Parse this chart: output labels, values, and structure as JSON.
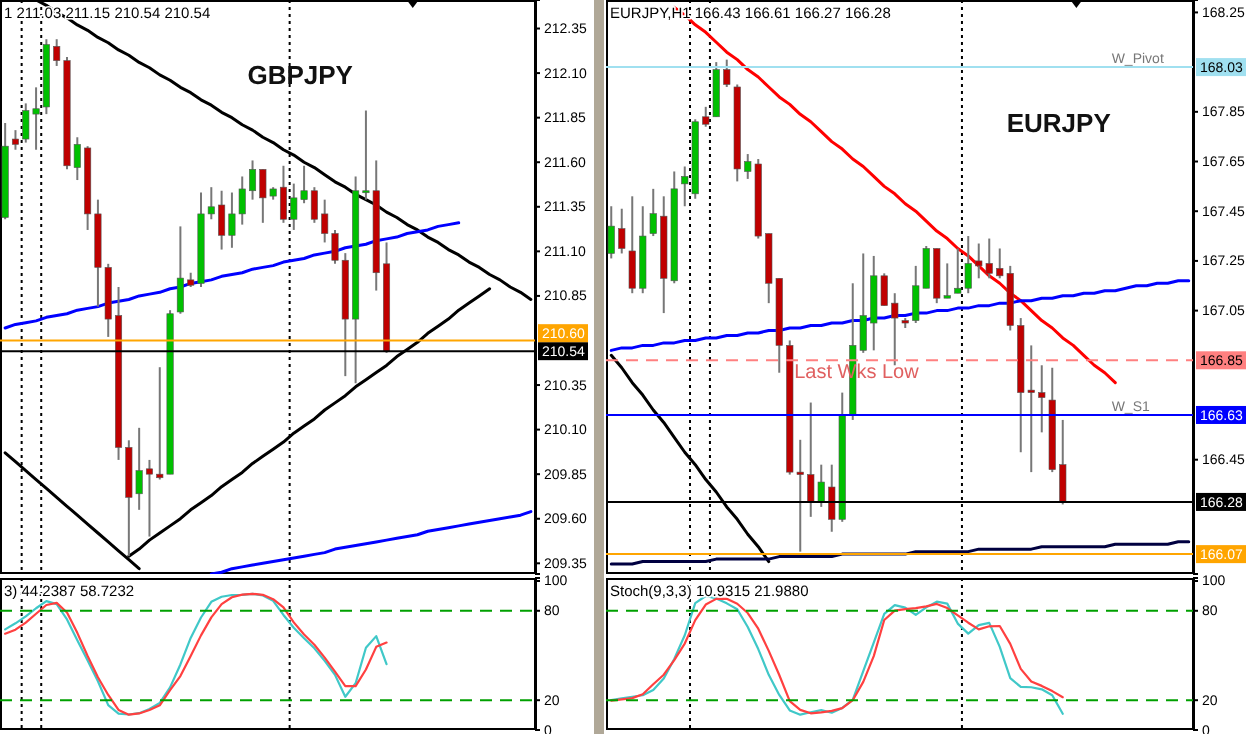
{
  "chart_data": [
    {
      "type": "candlestick",
      "title": "GBPJPY",
      "annotations": [
        "1 211.03 211.15 210.54 210.54"
      ],
      "categories": [
        null,
        null,
        null,
        null,
        null,
        null,
        null,
        null,
        null,
        null,
        null,
        null,
        null,
        null,
        null,
        null,
        null,
        null,
        null,
        null,
        null,
        null,
        null,
        null,
        null,
        null,
        null,
        null,
        null,
        null,
        null,
        null,
        null,
        null,
        null,
        null,
        null,
        null,
        null,
        null,
        null,
        null,
        null,
        null,
        null,
        null,
        null,
        null,
        null,
        null,
        null,
        null
      ],
      "ohlc": [
        [
          211.29,
          211.82,
          211.28,
          211.69
        ],
        [
          211.73,
          211.78,
          211.67,
          211.7
        ],
        [
          211.73,
          211.93,
          211.71,
          211.89
        ],
        [
          211.87,
          212.02,
          211.67,
          211.9
        ],
        [
          211.91,
          212.29,
          211.87,
          212.26
        ],
        [
          212.25,
          212.29,
          212.14,
          212.17
        ],
        [
          212.17,
          212.19,
          211.56,
          211.58
        ],
        [
          211.57,
          211.74,
          211.5,
          211.7
        ],
        [
          211.68,
          211.69,
          211.22,
          211.31
        ],
        [
          211.31,
          211.39,
          210.79,
          211.01
        ],
        [
          211.01,
          211.03,
          210.62,
          210.72
        ],
        [
          210.74,
          210.9,
          209.93,
          210.0
        ],
        [
          210.0,
          210.04,
          209.39,
          209.72
        ],
        [
          209.74,
          210.11,
          209.65,
          209.87
        ],
        [
          209.88,
          209.93,
          209.5,
          209.85
        ],
        [
          209.85,
          210.45,
          209.82,
          209.83
        ],
        [
          209.85,
          210.77,
          209.85,
          210.75
        ],
        [
          210.76,
          211.24,
          210.75,
          210.95
        ],
        [
          210.94,
          210.98,
          210.9,
          210.91
        ],
        [
          210.92,
          211.43,
          210.9,
          211.31
        ],
        [
          211.31,
          211.46,
          211.28,
          211.35
        ],
        [
          211.36,
          211.44,
          211.11,
          211.19
        ],
        [
          211.19,
          211.43,
          211.12,
          211.31
        ],
        [
          211.31,
          211.52,
          211.25,
          211.45
        ],
        [
          211.44,
          211.61,
          211.39,
          211.56
        ],
        [
          211.56,
          211.56,
          211.26,
          211.4
        ],
        [
          211.41,
          211.46,
          211.39,
          211.45
        ],
        [
          211.46,
          211.58,
          211.26,
          211.28
        ],
        [
          211.28,
          211.48,
          211.22,
          211.4
        ],
        [
          211.39,
          211.58,
          211.37,
          211.44
        ],
        [
          211.44,
          211.46,
          211.26,
          211.28
        ],
        [
          211.31,
          211.39,
          211.15,
          211.2
        ],
        [
          211.2,
          211.22,
          211.03,
          211.05
        ],
        [
          211.05,
          211.09,
          210.4,
          210.72
        ],
        [
          210.72,
          211.52,
          210.36,
          211.44
        ],
        [
          211.43,
          211.89,
          211.39,
          211.44
        ],
        [
          211.44,
          211.61,
          210.88,
          210.98
        ],
        [
          211.03,
          211.15,
          210.53,
          210.54
        ],
        null,
        null,
        null,
        null,
        null,
        null,
        null,
        null,
        null,
        null,
        null,
        null,
        null,
        null
      ],
      "colors": [
        "#00c000",
        "#c00000",
        "#00c000",
        "#00c000",
        "#00c000",
        "#c00000",
        "#c00000",
        "#00c000",
        "#c00000",
        "#c00000",
        "#c00000",
        "#c00000",
        "#c00000",
        "#00c000",
        "#c00000",
        "#c00000",
        "#00c000",
        "#00c000",
        "#c00000",
        "#00c000",
        "#00c000",
        "#c00000",
        "#00c000",
        "#00c000",
        "#00c000",
        "#c00000",
        "#00c000",
        "#c00000",
        "#00c000",
        "#00c000",
        "#c00000",
        "#c00000",
        "#c00000",
        "#c00000",
        "#00c000",
        "#00c000",
        "#c00000",
        "#c00000",
        null,
        null,
        null,
        null,
        null,
        null,
        null,
        null,
        null,
        null,
        null,
        null,
        null,
        null
      ],
      "series": [
        {
          "type": "line",
          "color": "#000000",
          "values": [
            null,
            null,
            null,
            212.51,
            212.48,
            212.44,
            212.41,
            212.37,
            212.34,
            212.3,
            212.27,
            212.23,
            212.2,
            212.16,
            212.13,
            212.09,
            212.06,
            212.02,
            211.99,
            211.95,
            211.92,
            211.88,
            211.85,
            211.81,
            211.78,
            211.74,
            211.71,
            211.67,
            211.64,
            211.6,
            211.57,
            211.53,
            211.49,
            211.46,
            211.42,
            211.39,
            211.36,
            211.32,
            211.29,
            211.25,
            211.22,
            211.18,
            211.15,
            211.11,
            211.08,
            211.04,
            211.01,
            210.97,
            210.94,
            210.9,
            210.87,
            210.83
          ]
        },
        {
          "type": "line",
          "color": "#000000",
          "values": [
            null,
            null,
            null,
            null,
            null,
            null,
            null,
            null,
            null,
            null,
            null,
            null,
            209.39,
            209.43,
            209.48,
            209.52,
            209.56,
            209.6,
            209.65,
            209.69,
            209.73,
            209.78,
            209.82,
            209.86,
            209.91,
            209.95,
            209.99,
            210.03,
            210.08,
            210.12,
            210.16,
            210.21,
            210.25,
            210.29,
            210.34,
            210.38,
            210.42,
            210.46,
            210.51,
            210.55,
            210.59,
            210.64,
            210.68,
            210.72,
            210.77,
            210.81,
            210.85,
            210.89,
            null,
            null,
            null,
            null
          ]
        },
        {
          "type": "line",
          "color": "#000000",
          "values": [
            209.97,
            209.92,
            209.87,
            209.82,
            209.77,
            209.72,
            209.67,
            209.62,
            209.57,
            209.52,
            209.47,
            209.42,
            209.37,
            209.32,
            null,
            null,
            null,
            null,
            null,
            null,
            null,
            null,
            null,
            null,
            null,
            null,
            null,
            null,
            null,
            null,
            null,
            null,
            null,
            null,
            null,
            null,
            null,
            null,
            null,
            null,
            null,
            null,
            null,
            null,
            null,
            null,
            null,
            null,
            null,
            null,
            null,
            null
          ]
        },
        {
          "type": "line",
          "color": "#0000ff",
          "values": [
            210.67,
            210.69,
            210.7,
            210.71,
            210.73,
            210.74,
            210.75,
            210.77,
            210.78,
            210.79,
            210.81,
            210.82,
            210.83,
            210.85,
            210.86,
            210.87,
            210.89,
            210.9,
            210.92,
            210.93,
            210.94,
            210.96,
            210.97,
            210.98,
            211.0,
            211.01,
            211.02,
            211.04,
            211.05,
            211.06,
            211.08,
            211.09,
            211.1,
            211.12,
            211.13,
            211.14,
            211.16,
            211.17,
            211.18,
            211.2,
            211.21,
            211.22,
            211.24,
            211.25,
            211.26,
            null,
            null,
            null,
            null,
            null,
            null,
            null
          ]
        },
        {
          "type": "line",
          "color": "#0000ff",
          "values": [
            null,
            null,
            null,
            null,
            null,
            null,
            null,
            null,
            null,
            null,
            null,
            null,
            null,
            null,
            null,
            null,
            null,
            null,
            null,
            null,
            209.29,
            209.3,
            209.32,
            209.33,
            209.34,
            209.35,
            209.36,
            209.37,
            209.38,
            209.39,
            209.4,
            209.41,
            209.43,
            209.44,
            209.45,
            209.46,
            209.47,
            209.48,
            209.49,
            209.5,
            209.51,
            209.53,
            209.54,
            209.55,
            209.56,
            209.57,
            209.58,
            209.59,
            209.6,
            209.61,
            209.62,
            209.64
          ]
        }
      ],
      "ylim": [
        209.29,
        212.51
      ],
      "yticks": [
        212.35,
        {
          "value": 212.1,
          "label": "212.10"
        },
        211.85,
        {
          "value": 211.6,
          "label": "211.60"
        },
        211.35,
        {
          "value": 211.1,
          "label": "211.10"
        },
        210.85,
        210.35,
        {
          "value": 210.1,
          "label": "210.10"
        },
        209.85,
        {
          "value": 209.6,
          "label": "209.60"
        },
        209.35
      ],
      "tick_labels": "y",
      "ref_lines": [
        {
          "axis": "y",
          "value": 210.6,
          "label": "210.60",
          "color": "#ffa500",
          "line_style": "solid"
        },
        {
          "axis": "y",
          "value": 210.54,
          "label": "210.54",
          "color": "#000000",
          "line_style": "solid"
        }
      ]
    },
    {
      "type": "candlestick",
      "title": "EURJPY",
      "annotations": [
        "EURJPY,H1 166.43 166.61 166.27 166.28",
        {
          "text": "W_Pivot",
          "y": 168.03
        },
        {
          "text": "Last Wks Low",
          "y": 166.85
        },
        {
          "text": "W_S1",
          "y": 166.63
        }
      ],
      "categories": [
        null,
        null,
        null,
        null,
        null,
        null,
        null,
        null,
        null,
        null,
        null,
        null,
        null,
        null,
        null,
        null,
        null,
        null,
        null,
        null,
        null,
        null,
        null,
        null,
        null,
        null,
        null,
        null,
        null,
        null,
        null,
        null,
        null,
        null,
        null,
        null,
        null,
        null,
        null,
        null,
        null,
        null,
        null,
        null,
        null,
        null,
        null,
        null,
        null,
        null,
        null,
        null,
        null,
        null,
        null,
        null
      ],
      "ohlc": [
        [
          167.28,
          167.47,
          167.26,
          167.39
        ],
        [
          167.38,
          167.46,
          167.28,
          167.3
        ],
        [
          167.29,
          167.51,
          167.12,
          167.14
        ],
        [
          167.14,
          167.47,
          167.12,
          167.35
        ],
        [
          167.36,
          167.54,
          167.35,
          167.44
        ],
        [
          167.43,
          167.51,
          167.04,
          167.18
        ],
        [
          167.17,
          167.61,
          167.16,
          167.54
        ],
        [
          167.56,
          167.63,
          167.47,
          167.59
        ],
        [
          167.52,
          167.82,
          167.5,
          167.81
        ],
        [
          167.83,
          167.87,
          167.79,
          167.8
        ],
        [
          167.83,
          168.05,
          167.83,
          168.02
        ],
        [
          168.02,
          168.06,
          167.95,
          167.96
        ],
        [
          167.95,
          167.96,
          167.57,
          167.62
        ],
        [
          167.61,
          167.68,
          167.58,
          167.65
        ],
        [
          167.64,
          167.66,
          167.34,
          167.35
        ],
        [
          167.36,
          167.36,
          167.08,
          167.16
        ],
        [
          167.18,
          167.18,
          166.8,
          166.91
        ],
        [
          166.91,
          166.93,
          166.39,
          166.4
        ],
        [
          166.4,
          166.53,
          166.08,
          166.39
        ],
        [
          166.39,
          166.68,
          166.22,
          166.28
        ],
        [
          166.28,
          166.43,
          166.26,
          166.36
        ],
        [
          166.34,
          166.43,
          166.16,
          166.21
        ],
        [
          166.21,
          166.72,
          166.2,
          166.63
        ],
        [
          166.63,
          167.16,
          166.61,
          166.91
        ],
        [
          166.89,
          167.28,
          166.88,
          167.03
        ],
        [
          167.0,
          167.27,
          166.89,
          167.19
        ],
        [
          167.19,
          167.2,
          167.07,
          167.07
        ],
        [
          167.08,
          167.12,
          166.83,
          167.02
        ],
        [
          167.01,
          167.02,
          166.98,
          167.0
        ],
        [
          167.01,
          167.23,
          167.0,
          167.15
        ],
        [
          167.14,
          167.31,
          167.14,
          167.3
        ],
        [
          167.3,
          167.3,
          167.08,
          167.1
        ],
        [
          167.1,
          167.24,
          167.1,
          167.11
        ],
        [
          167.12,
          167.3,
          167.12,
          167.14
        ],
        [
          167.14,
          167.35,
          167.12,
          167.24
        ],
        [
          167.25,
          167.32,
          167.18,
          167.23
        ],
        [
          167.24,
          167.34,
          167.18,
          167.2
        ],
        [
          167.22,
          167.3,
          167.18,
          167.19
        ],
        [
          167.2,
          167.23,
          166.97,
          166.99
        ],
        [
          166.99,
          167.02,
          166.48,
          166.72
        ],
        [
          166.73,
          166.91,
          166.4,
          166.72
        ],
        [
          166.72,
          166.83,
          166.56,
          166.7
        ],
        [
          166.69,
          166.82,
          166.4,
          166.41
        ],
        [
          166.43,
          166.61,
          166.27,
          166.28
        ],
        null,
        null,
        null,
        null,
        null,
        null,
        null,
        null,
        null,
        null,
        null,
        null
      ],
      "colors": [
        "#00c000",
        "#c00000",
        "#c00000",
        "#00c000",
        "#00c000",
        "#c00000",
        "#00c000",
        "#00c000",
        "#00c000",
        "#c00000",
        "#00c000",
        "#c00000",
        "#c00000",
        "#00c000",
        "#c00000",
        "#c00000",
        "#c00000",
        "#c00000",
        "#c00000",
        "#c00000",
        "#00c000",
        "#c00000",
        "#00c000",
        "#00c000",
        "#00c000",
        "#00c000",
        "#c00000",
        "#c00000",
        "#c00000",
        "#00c000",
        "#00c000",
        "#c00000",
        "#00c000",
        "#00c000",
        "#00c000",
        "#c00000",
        "#c00000",
        "#c00000",
        "#c00000",
        "#c00000",
        "#c00000",
        "#c00000",
        "#c00000",
        "#c00000",
        null,
        null,
        null,
        null,
        null,
        null,
        null,
        null,
        null,
        null,
        null,
        null
      ],
      "series": [
        {
          "type": "line",
          "color": "#ff0000",
          "values": [
            null,
            null,
            null,
            null,
            null,
            null,
            168.27,
            168.24,
            168.2,
            168.17,
            168.13,
            168.09,
            168.06,
            168.02,
            167.99,
            167.95,
            167.91,
            167.88,
            167.84,
            167.81,
            167.77,
            167.73,
            167.7,
            167.66,
            167.63,
            167.59,
            167.55,
            167.52,
            167.48,
            167.45,
            167.41,
            167.37,
            167.34,
            167.3,
            167.27,
            167.23,
            167.19,
            167.16,
            167.12,
            167.09,
            167.05,
            167.01,
            166.98,
            166.94,
            166.91,
            166.87,
            166.83,
            166.8,
            166.76,
            null,
            null,
            null,
            null,
            null,
            null,
            null
          ]
        },
        {
          "type": "line",
          "color": "#0000ff",
          "values": [
            166.89,
            166.9,
            166.9,
            166.91,
            166.91,
            166.92,
            166.92,
            166.93,
            166.93,
            166.94,
            166.94,
            166.95,
            166.95,
            166.96,
            166.96,
            166.97,
            166.97,
            166.98,
            166.98,
            166.99,
            166.99,
            167.0,
            167.0,
            167.01,
            167.01,
            167.02,
            167.02,
            167.03,
            167.03,
            167.04,
            167.04,
            167.05,
            167.05,
            167.06,
            167.06,
            167.07,
            167.07,
            167.08,
            167.08,
            167.09,
            167.09,
            167.1,
            167.1,
            167.11,
            167.11,
            167.12,
            167.12,
            167.13,
            167.13,
            167.14,
            167.15,
            167.15,
            167.16,
            167.16,
            167.17,
            167.17
          ]
        },
        {
          "type": "line",
          "color": "#000000",
          "values": [
            166.87,
            166.82,
            166.76,
            166.71,
            166.65,
            166.6,
            166.54,
            166.48,
            166.43,
            166.37,
            166.32,
            166.26,
            166.21,
            166.15,
            166.1,
            166.04,
            null,
            null,
            null,
            null,
            null,
            null,
            null,
            null,
            null,
            null,
            null,
            null,
            null,
            null,
            null,
            null,
            null,
            null,
            null,
            null,
            null,
            null,
            null,
            null,
            null,
            null,
            null,
            null,
            null,
            null,
            null,
            null,
            null,
            null,
            null,
            null,
            null,
            null,
            null,
            null
          ]
        },
        {
          "type": "line",
          "color": "#000040",
          "values": [
            166.03,
            166.03,
            166.03,
            166.04,
            166.04,
            166.04,
            166.04,
            166.04,
            166.04,
            166.04,
            166.05,
            166.05,
            166.05,
            166.05,
            166.05,
            166.05,
            166.06,
            166.06,
            166.06,
            166.06,
            166.06,
            166.06,
            166.07,
            166.07,
            166.07,
            166.07,
            166.07,
            166.07,
            166.07,
            166.08,
            166.08,
            166.08,
            166.08,
            166.08,
            166.08,
            166.09,
            166.09,
            166.09,
            166.09,
            166.09,
            166.09,
            166.1,
            166.1,
            166.1,
            166.1,
            166.1,
            166.1,
            166.1,
            166.11,
            166.11,
            166.11,
            166.11,
            166.11,
            166.11,
            166.12,
            166.12
          ]
        }
      ],
      "ylim": [
        165.99,
        168.3
      ],
      "yticks": [
        168.25,
        167.85,
        167.65,
        167.45,
        167.25,
        167.05,
        166.45
      ],
      "tick_labels": "y",
      "ref_lines": [
        {
          "axis": "y",
          "value": 168.03,
          "label": "168.03",
          "color": "#a0e0f0",
          "line_style": "solid"
        },
        {
          "axis": "y",
          "value": 166.85,
          "label": "166.85",
          "color": "#ff8080",
          "line_style": "dashed"
        },
        {
          "axis": "y",
          "value": 166.63,
          "label": "166.63",
          "color": "#0000ff",
          "line_style": "solid"
        },
        {
          "axis": "y",
          "value": 166.28,
          "label": "166.28",
          "color": "#000000",
          "line_style": "solid"
        },
        {
          "axis": "y",
          "value": 166.07,
          "label": "166.07",
          "color": "#ffa500",
          "line_style": "solid"
        }
      ]
    },
    {
      "type": "line",
      "annotations": [
        "3) 44.2387 58.7232"
      ],
      "categories": [
        null,
        null,
        null,
        null,
        null,
        null,
        null,
        null,
        null,
        null,
        null,
        null,
        null,
        null,
        null,
        null,
        null,
        null,
        null,
        null,
        null,
        null,
        null,
        null,
        null,
        null,
        null,
        null,
        null,
        null,
        null,
        null,
        null,
        null,
        null,
        null,
        null,
        null,
        null,
        null,
        null,
        null,
        null,
        null,
        null,
        null,
        null,
        null,
        null,
        null,
        null,
        null
      ],
      "series": [
        {
          "color": "#40c8c8",
          "values": [
            67.5,
            71.6,
            76.2,
            81.7,
            86.5,
            84.5,
            74.2,
            60.3,
            46.6,
            32.7,
            16.7,
            11.0,
            10.4,
            11.3,
            14.1,
            18.2,
            28.6,
            44.0,
            61.8,
            75.5,
            86.0,
            89.4,
            90.6,
            90.7,
            91.4,
            90.3,
            86.7,
            77.2,
            68.6,
            61.6,
            54.8,
            46.4,
            37.0,
            22.3,
            31.4,
            55.2,
            63.0,
            44.2,
            null,
            null,
            null,
            null,
            null,
            null,
            null,
            null,
            null,
            null,
            null,
            null,
            null,
            null
          ]
        },
        {
          "color": "#ff4040",
          "values": [
            64.6,
            67.3,
            72.1,
            78.0,
            83.9,
            85.3,
            78.8,
            65.2,
            49.7,
            35.4,
            23.5,
            13.5,
            10.3,
            11.1,
            13.4,
            16.6,
            26.7,
            36.2,
            49.6,
            63.5,
            75.6,
            84.5,
            89.1,
            90.8,
            91.4,
            90.7,
            87.8,
            82.3,
            72.2,
            64.1,
            57.2,
            48.6,
            39.2,
            29.5,
            29.4,
            40.6,
            55.8,
            58.7,
            null,
            null,
            null,
            null,
            null,
            null,
            null,
            null,
            null,
            null,
            null,
            null,
            null,
            null
          ]
        }
      ],
      "ylim": [
        0,
        102
      ],
      "yticks": [
        100,
        80,
        20,
        0
      ],
      "tick_labels": "y",
      "ref_lines": [
        {
          "axis": "y",
          "value": 80,
          "color": "#00a000",
          "line_style": "dashed"
        },
        {
          "axis": "y",
          "value": 20,
          "color": "#00a000",
          "line_style": "dashed"
        }
      ]
    },
    {
      "type": "line",
      "annotations": [
        "Stoch(9,3,3) 10.9315 21.9880"
      ],
      "categories": [
        null,
        null,
        null,
        null,
        null,
        null,
        null,
        null,
        null,
        null,
        null,
        null,
        null,
        null,
        null,
        null,
        null,
        null,
        null,
        null,
        null,
        null,
        null,
        null,
        null,
        null,
        null,
        null,
        null,
        null,
        null,
        null,
        null,
        null,
        null,
        null,
        null,
        null,
        null,
        null,
        null,
        null,
        null,
        null,
        null,
        null,
        null,
        null,
        null,
        null,
        null,
        null,
        null,
        null,
        null,
        null
      ],
      "series": [
        {
          "color": "#40c8c8",
          "values": [
            20.1,
            21.2,
            22.3,
            23.3,
            26.9,
            34.5,
            47.7,
            63.6,
            85.1,
            89.9,
            88.3,
            85.0,
            81.0,
            69.1,
            54.3,
            37.0,
            23.5,
            13.1,
            10.3,
            11.9,
            13.3,
            11.6,
            14.8,
            20.2,
            39.5,
            58.7,
            77.9,
            83.8,
            82.1,
            77.3,
            82.3,
            86.1,
            84.8,
            71.4,
            64.7,
            70.4,
            71.9,
            55.8,
            34.8,
            28.9,
            28.7,
            27.3,
            23.3,
            10.9,
            null,
            null,
            null,
            null,
            null,
            null,
            null,
            null,
            null,
            null,
            null,
            null
          ]
        },
        {
          "color": "#ff4040",
          "values": [
            19.7,
            20.6,
            21.4,
            24.0,
            30.7,
            37.1,
            46.9,
            58.0,
            73.7,
            84.2,
            88.0,
            88.0,
            84.7,
            78.5,
            68.0,
            53.1,
            36.9,
            19.4,
            13.5,
            11.2,
            11.8,
            12.8,
            14.7,
            20.0,
            32.3,
            49.6,
            73.8,
            80.1,
            81.1,
            81.8,
            83.0,
            84.6,
            81.8,
            76.9,
            72.0,
            67.5,
            69.6,
            69.8,
            57.8,
            41.0,
            32.5,
            29.6,
            26.1,
            22.0,
            null,
            null,
            null,
            null,
            null,
            null,
            null,
            null,
            null,
            null,
            null,
            null
          ]
        }
      ],
      "ylim": [
        0,
        102
      ],
      "yticks": [
        100,
        80,
        20,
        0
      ],
      "tick_labels": "y",
      "ref_lines": [
        {
          "axis": "y",
          "value": 80,
          "color": "#00a000",
          "line_style": "dashed"
        },
        {
          "axis": "y",
          "value": 20,
          "color": "#00a000",
          "line_style": "dashed"
        }
      ]
    }
  ]
}
